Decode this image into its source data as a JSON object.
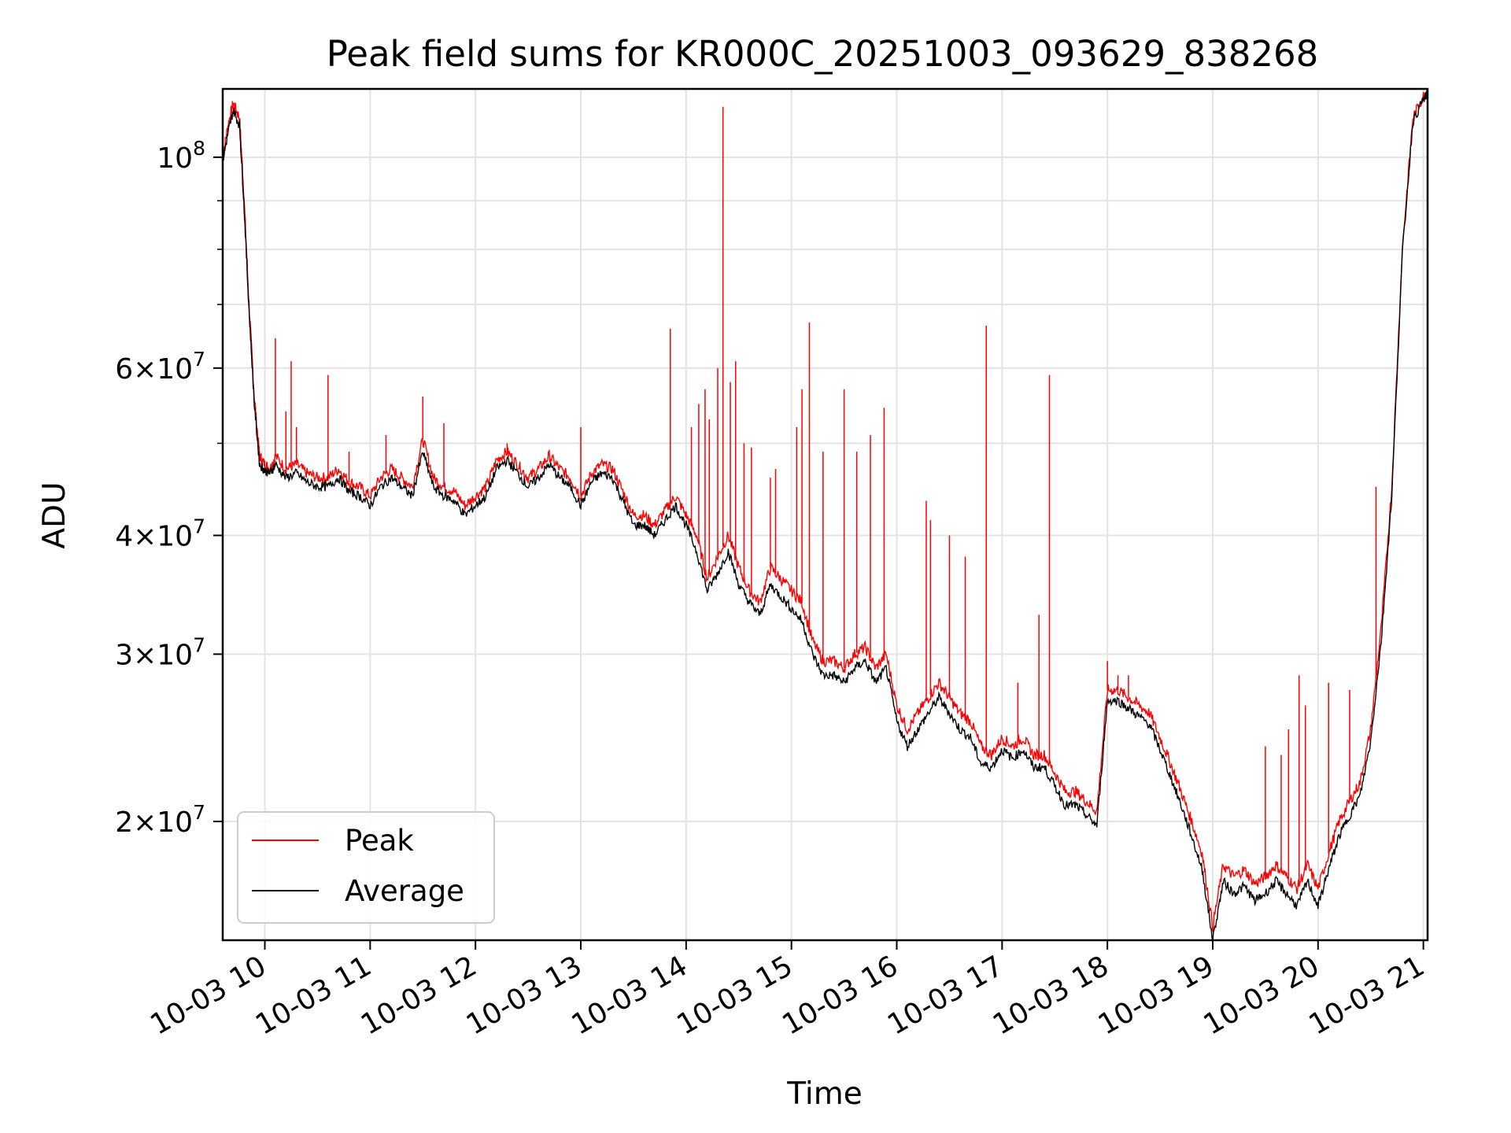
{
  "chart_data": {
    "type": "line",
    "title": "Peak field sums for KR000C_20251003_093629_838268",
    "xlabel": "Time",
    "ylabel": "ADU",
    "yscale": "log",
    "xlim": [
      9.6,
      21.04
    ],
    "ylim": [
      15000000,
      118000000
    ],
    "grid": true,
    "legend_position": "lower-left",
    "x_ticks": [
      {
        "value": 10,
        "label": "10-03 10"
      },
      {
        "value": 11,
        "label": "10-03 11"
      },
      {
        "value": 12,
        "label": "10-03 12"
      },
      {
        "value": 13,
        "label": "10-03 13"
      },
      {
        "value": 14,
        "label": "10-03 14"
      },
      {
        "value": 15,
        "label": "10-03 15"
      },
      {
        "value": 16,
        "label": "10-03 16"
      },
      {
        "value": 17,
        "label": "10-03 17"
      },
      {
        "value": 18,
        "label": "10-03 18"
      },
      {
        "value": 19,
        "label": "10-03 19"
      },
      {
        "value": 20,
        "label": "10-03 20"
      },
      {
        "value": 21,
        "label": "10-03 21"
      }
    ],
    "y_ticks": [
      {
        "value": 20000000,
        "base": "2",
        "exp": "7"
      },
      {
        "value": 30000000,
        "base": "3",
        "exp": "7"
      },
      {
        "value": 40000000,
        "base": "4",
        "exp": "7"
      },
      {
        "value": 60000000,
        "base": "6",
        "exp": "7"
      },
      {
        "value": 100000000,
        "base": "",
        "exp": "8"
      }
    ],
    "y_minor_ticks": [
      50000000,
      70000000,
      80000000,
      90000000
    ],
    "series": [
      {
        "name": "Peak",
        "color": "#ff0000",
        "x": [
          9.6,
          9.65,
          9.7,
          9.76,
          9.8,
          9.85,
          9.9,
          9.95,
          10.0,
          10.05,
          10.1,
          10.2,
          10.3,
          10.4,
          10.5,
          10.6,
          10.7,
          10.8,
          10.9,
          11.0,
          11.1,
          11.2,
          11.3,
          11.4,
          11.5,
          11.6,
          11.7,
          11.8,
          11.9,
          12.0,
          12.1,
          12.2,
          12.3,
          12.4,
          12.5,
          12.6,
          12.7,
          12.8,
          12.9,
          13.0,
          13.1,
          13.2,
          13.3,
          13.4,
          13.5,
          13.6,
          13.7,
          13.8,
          13.9,
          14.0,
          14.1,
          14.2,
          14.3,
          14.4,
          14.5,
          14.6,
          14.7,
          14.8,
          14.9,
          15.0,
          15.1,
          15.2,
          15.3,
          15.4,
          15.5,
          15.6,
          15.7,
          15.8,
          15.9,
          16.0,
          16.1,
          16.2,
          16.3,
          16.4,
          16.5,
          16.6,
          16.7,
          16.8,
          16.9,
          17.0,
          17.1,
          17.2,
          17.3,
          17.4,
          17.5,
          17.6,
          17.7,
          17.8,
          17.9,
          18.0,
          18.1,
          18.2,
          18.3,
          18.4,
          18.5,
          18.6,
          18.7,
          18.8,
          18.9,
          19.0,
          19.1,
          19.2,
          19.3,
          19.4,
          19.5,
          19.6,
          19.7,
          19.8,
          19.9,
          20.0,
          20.1,
          20.2,
          20.3,
          20.4,
          20.5,
          20.6,
          20.7,
          20.8,
          20.9,
          21.0,
          21.04
        ],
        "y": [
          100000000,
          108000000,
          114000000,
          110000000,
          92000000,
          70000000,
          56000000,
          48500000,
          47500000,
          47000000,
          48500000,
          47000000,
          47500000,
          46500000,
          46000000,
          46000000,
          47000000,
          45500000,
          45000000,
          44000000,
          46000000,
          47000000,
          46000000,
          45000000,
          50500000,
          46000000,
          45000000,
          44500000,
          43000000,
          44000000,
          45000000,
          48000000,
          49000000,
          47500000,
          46000000,
          47000000,
          48500000,
          47000000,
          46000000,
          44000000,
          46500000,
          47500000,
          47000000,
          44500000,
          42000000,
          42000000,
          41000000,
          42500000,
          44000000,
          42000000,
          40000000,
          36000000,
          38000000,
          40000000,
          37000000,
          35000000,
          34000000,
          37000000,
          36000000,
          35000000,
          34000000,
          31000000,
          29500000,
          29500000,
          29000000,
          30000000,
          30500000,
          29000000,
          30000000,
          26500000,
          25000000,
          26000000,
          27000000,
          28000000,
          27000000,
          26000000,
          25500000,
          24000000,
          23500000,
          24500000,
          24000000,
          24500000,
          23500000,
          23500000,
          22500000,
          21500000,
          21500000,
          21000000,
          20500000,
          27500000,
          27500000,
          27000000,
          26500000,
          26000000,
          24500000,
          23000000,
          21500000,
          20000000,
          18500000,
          15500000,
          18000000,
          17500000,
          17800000,
          17200000,
          17500000,
          18000000,
          17500000,
          17000000,
          18000000,
          17000000,
          18500000,
          20000000,
          21000000,
          22000000,
          25000000,
          32000000,
          45000000,
          80000000,
          110000000,
          116000000,
          117500000
        ],
        "spikes": [
          {
            "x": 10.1,
            "y": 64500000
          },
          {
            "x": 10.2,
            "y": 54000000
          },
          {
            "x": 10.25,
            "y": 61000000
          },
          {
            "x": 10.3,
            "y": 52000000
          },
          {
            "x": 10.6,
            "y": 59000000
          },
          {
            "x": 10.8,
            "y": 49000000
          },
          {
            "x": 11.15,
            "y": 51000000
          },
          {
            "x": 11.5,
            "y": 56000000
          },
          {
            "x": 11.7,
            "y": 52500000
          },
          {
            "x": 12.3,
            "y": 50000000
          },
          {
            "x": 13.0,
            "y": 52000000
          },
          {
            "x": 13.85,
            "y": 66000000
          },
          {
            "x": 14.05,
            "y": 52000000
          },
          {
            "x": 14.12,
            "y": 55000000
          },
          {
            "x": 14.18,
            "y": 57000000
          },
          {
            "x": 14.22,
            "y": 53000000
          },
          {
            "x": 14.3,
            "y": 60000000
          },
          {
            "x": 14.35,
            "y": 113000000
          },
          {
            "x": 14.42,
            "y": 58000000
          },
          {
            "x": 14.47,
            "y": 61000000
          },
          {
            "x": 14.55,
            "y": 50000000
          },
          {
            "x": 14.62,
            "y": 49500000
          },
          {
            "x": 14.8,
            "y": 46000000
          },
          {
            "x": 14.85,
            "y": 47000000
          },
          {
            "x": 15.05,
            "y": 52000000
          },
          {
            "x": 15.1,
            "y": 57000000
          },
          {
            "x": 15.17,
            "y": 67000000
          },
          {
            "x": 15.3,
            "y": 49000000
          },
          {
            "x": 15.5,
            "y": 57000000
          },
          {
            "x": 15.62,
            "y": 49000000
          },
          {
            "x": 15.75,
            "y": 51000000
          },
          {
            "x": 15.88,
            "y": 54500000
          },
          {
            "x": 16.28,
            "y": 43500000
          },
          {
            "x": 16.32,
            "y": 41500000
          },
          {
            "x": 16.5,
            "y": 40000000
          },
          {
            "x": 16.65,
            "y": 38000000
          },
          {
            "x": 16.85,
            "y": 66500000
          },
          {
            "x": 17.15,
            "y": 28000000
          },
          {
            "x": 17.35,
            "y": 33000000
          },
          {
            "x": 17.45,
            "y": 59000000
          },
          {
            "x": 18.0,
            "y": 29500000
          },
          {
            "x": 18.1,
            "y": 28500000
          },
          {
            "x": 18.2,
            "y": 28500000
          },
          {
            "x": 19.5,
            "y": 24000000
          },
          {
            "x": 19.65,
            "y": 23500000
          },
          {
            "x": 19.72,
            "y": 25000000
          },
          {
            "x": 19.82,
            "y": 28500000
          },
          {
            "x": 19.88,
            "y": 26500000
          },
          {
            "x": 20.1,
            "y": 28000000
          },
          {
            "x": 20.3,
            "y": 27500000
          },
          {
            "x": 20.55,
            "y": 45000000
          }
        ]
      },
      {
        "name": "Average",
        "color": "#000000",
        "x": [
          9.6,
          9.65,
          9.7,
          9.76,
          9.8,
          9.85,
          9.9,
          9.95,
          10.0,
          10.05,
          10.1,
          10.2,
          10.3,
          10.4,
          10.5,
          10.6,
          10.7,
          10.8,
          10.9,
          11.0,
          11.1,
          11.2,
          11.3,
          11.4,
          11.5,
          11.6,
          11.7,
          11.8,
          11.9,
          12.0,
          12.1,
          12.2,
          12.3,
          12.4,
          12.5,
          12.6,
          12.7,
          12.8,
          12.9,
          13.0,
          13.1,
          13.2,
          13.3,
          13.4,
          13.5,
          13.6,
          13.7,
          13.8,
          13.9,
          14.0,
          14.1,
          14.2,
          14.3,
          14.4,
          14.5,
          14.6,
          14.7,
          14.8,
          14.9,
          15.0,
          15.1,
          15.2,
          15.3,
          15.4,
          15.5,
          15.6,
          15.7,
          15.8,
          15.9,
          16.0,
          16.1,
          16.2,
          16.3,
          16.4,
          16.5,
          16.6,
          16.7,
          16.8,
          16.9,
          17.0,
          17.1,
          17.2,
          17.3,
          17.4,
          17.5,
          17.6,
          17.7,
          17.8,
          17.9,
          18.0,
          18.1,
          18.2,
          18.3,
          18.4,
          18.5,
          18.6,
          18.7,
          18.8,
          18.9,
          19.0,
          19.1,
          19.2,
          19.3,
          19.4,
          19.5,
          19.6,
          19.7,
          19.8,
          19.9,
          20.0,
          20.1,
          20.2,
          20.3,
          20.4,
          20.5,
          20.6,
          20.7,
          20.8,
          20.9,
          21.0,
          21.04
        ],
        "y": [
          99000000,
          106000000,
          112000000,
          108000000,
          90000000,
          69000000,
          55000000,
          47500000,
          46800000,
          46500000,
          47500000,
          46000000,
          46500000,
          45500000,
          45000000,
          45000000,
          46000000,
          44500000,
          44000000,
          43000000,
          45000000,
          46000000,
          45000000,
          44000000,
          49000000,
          45000000,
          44000000,
          43500000,
          42000000,
          43000000,
          44000000,
          47000000,
          48000000,
          46500000,
          45000000,
          46000000,
          47500000,
          46000000,
          45000000,
          43000000,
          45500000,
          46500000,
          46000000,
          43500000,
          41000000,
          41000000,
          40000000,
          41500000,
          43000000,
          41000000,
          38500000,
          35000000,
          36500000,
          38500000,
          35500000,
          34000000,
          33000000,
          35500000,
          34500000,
          33500000,
          32500000,
          30000000,
          28500000,
          28500000,
          28000000,
          29000000,
          29500000,
          28000000,
          29000000,
          25500000,
          24000000,
          25000000,
          26000000,
          27000000,
          26000000,
          25000000,
          24500000,
          23000000,
          22800000,
          23800000,
          23300000,
          23800000,
          22800000,
          22800000,
          21800000,
          20800000,
          20800000,
          20300000,
          19800000,
          26800000,
          26800000,
          26300000,
          25800000,
          25300000,
          23800000,
          22300000,
          20800000,
          19300000,
          17800000,
          15000000,
          17300000,
          16800000,
          17100000,
          16500000,
          16800000,
          17300000,
          16800000,
          16300000,
          17300000,
          16300000,
          17800000,
          19300000,
          20300000,
          21300000,
          24300000,
          31000000,
          44000000,
          79000000,
          109000000,
          115000000,
          116500000
        ]
      }
    ]
  }
}
